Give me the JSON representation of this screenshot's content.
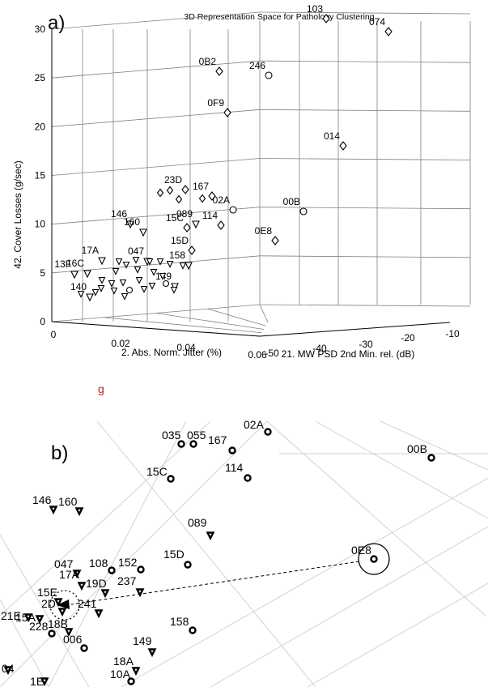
{
  "chart_data": [
    {
      "panel": "a)",
      "type": "scatter",
      "title": "3D Representation Space for Pathology Clustering",
      "axes": {
        "x": {
          "label": "2. Abs. Norm. Jitter (%)",
          "ticks": [
            "0",
            "0.02",
            "0.04",
            "0.06"
          ],
          "range": [
            0,
            0.06
          ]
        },
        "y": {
          "label": "21. MW PSD 2nd Min. rel. (dB)",
          "ticks": [
            "-50",
            "-40",
            "-30",
            "-20",
            "-10"
          ],
          "range": [
            -50,
            -10
          ]
        },
        "z": {
          "label": "42. Cover Losses (g/sec)",
          "ticks": [
            "0",
            "5",
            "10",
            "15",
            "20",
            "25",
            "30"
          ],
          "range": [
            0,
            30
          ]
        }
      },
      "grid": true,
      "marker_legend": {
        "circle": "o",
        "diamond": "◇",
        "triangle": "▽"
      },
      "points": [
        {
          "label": "103",
          "marker": "diamond",
          "z": 30.8
        },
        {
          "label": "074",
          "marker": "diamond",
          "z": 29.5
        },
        {
          "label": "0B2",
          "marker": "diamond",
          "z": 27.5
        },
        {
          "label": "246",
          "marker": "circle",
          "z": 27.0
        },
        {
          "label": "0F9",
          "marker": "diamond",
          "z": 23.0
        },
        {
          "label": "014",
          "marker": "diamond",
          "z": 17.0
        },
        {
          "label": "23D",
          "marker": "diamond",
          "z": 15.0
        },
        {
          "label": "167",
          "marker": "diamond",
          "z": 14.0
        },
        {
          "label": "02A",
          "marker": "circle",
          "z": 12.2
        },
        {
          "label": "00B",
          "marker": "circle",
          "z": 12.0
        },
        {
          "label": "146",
          "marker": "triangle",
          "z": 10.8
        },
        {
          "label": "160",
          "marker": "triangle",
          "z": 10.0
        },
        {
          "label": "089",
          "marker": "triangle",
          "z": 11.0
        },
        {
          "label": "114",
          "marker": "diamond",
          "z": 10.5
        },
        {
          "label": "15C",
          "marker": "diamond",
          "z": 10.5
        },
        {
          "label": "0E8",
          "marker": "diamond",
          "z": 8.8
        },
        {
          "label": "15D",
          "marker": "diamond",
          "z": 7.5
        },
        {
          "label": "17A",
          "marker": "triangle",
          "z": 6.5
        },
        {
          "label": "047",
          "marker": "triangle",
          "z": 6.5
        },
        {
          "label": "158",
          "marker": "triangle",
          "z": 5.5
        },
        {
          "label": "13F",
          "marker": "triangle",
          "z": 5.0
        },
        {
          "label": "16C",
          "marker": "triangle",
          "z": 5.0
        },
        {
          "label": "149",
          "marker": "triangle",
          "z": 3.5
        },
        {
          "label": "140",
          "marker": "triangle",
          "z": 3.0
        }
      ]
    },
    {
      "panel": "b)",
      "type": "scatter",
      "description": "zoomed view of the 3D space",
      "points": [
        {
          "label": "035"
        },
        {
          "label": "055"
        },
        {
          "label": "167"
        },
        {
          "label": "02A"
        },
        {
          "label": "00B"
        },
        {
          "label": "15C"
        },
        {
          "label": "114"
        },
        {
          "label": "146"
        },
        {
          "label": "160"
        },
        {
          "label": "089"
        },
        {
          "label": "15D"
        },
        {
          "label": "0E8"
        },
        {
          "label": "047"
        },
        {
          "label": "108"
        },
        {
          "label": "152"
        },
        {
          "label": "17A"
        },
        {
          "label": "19D"
        },
        {
          "label": "237"
        },
        {
          "label": "15E"
        },
        {
          "label": "2D"
        },
        {
          "label": "21E"
        },
        {
          "label": "15A"
        },
        {
          "label": "241"
        },
        {
          "label": "18B"
        },
        {
          "label": "158"
        },
        {
          "label": "228"
        },
        {
          "label": "006"
        },
        {
          "label": "149"
        },
        {
          "label": "18A"
        },
        {
          "label": "10A"
        },
        {
          "label": "1E"
        },
        {
          "label": "04"
        }
      ]
    }
  ],
  "text": {
    "panel_a": "a)",
    "panel_b": "b)",
    "title_a": "3D Representation Space for Pathology Clustering",
    "xlabel": "2. Abs. Norm. Jitter (%)",
    "ylabel": "21. MW PSD 2nd Min. rel. (dB)",
    "zlabel": "42. Cover Losses (g/sec)",
    "stray_mark": "g"
  },
  "colors": {
    "axis": "#000000",
    "grid": "#808080",
    "gridlight": "#d2d2d2",
    "text": "#000000",
    "stray": "#b22222"
  }
}
